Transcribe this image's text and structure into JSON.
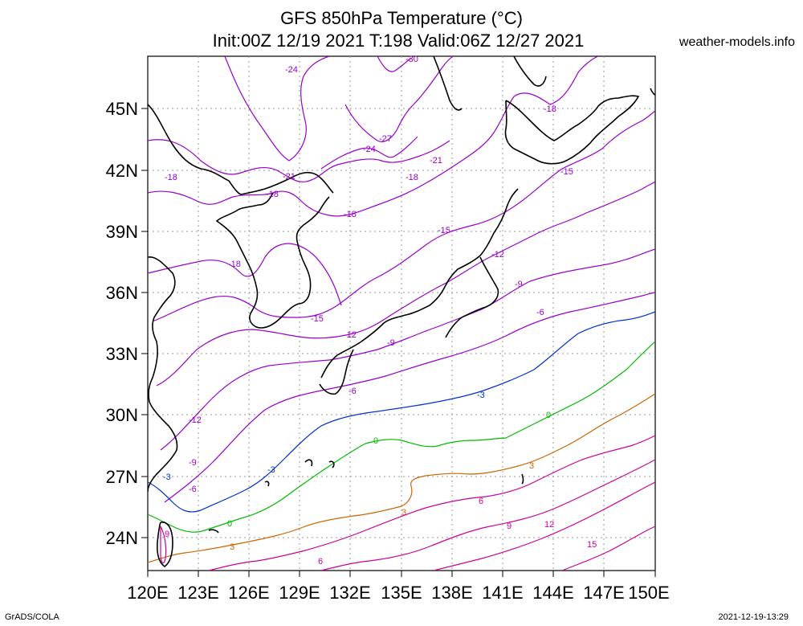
{
  "title_line1": "GFS 850hPa Temperature (°C)",
  "title_line2": "Init:00Z 12/19 2021 T:198 Valid:06Z 12/27 2021",
  "site": "weather-models.info",
  "footer_left": "GrADS/COLA",
  "footer_right": "2021-12-19-13:29",
  "lat_labels": [
    "24N",
    "27N",
    "30N",
    "33N",
    "36N",
    "39N",
    "42N",
    "45N"
  ],
  "lon_labels": [
    "120E",
    "123E",
    "126E",
    "129E",
    "132E",
    "135E",
    "138E",
    "141E",
    "144E",
    "147E",
    "150E"
  ],
  "colors": {
    "purple": "#9900cc",
    "magenta": "#cc0099",
    "blue": "#0033cc",
    "green": "#00bb00",
    "orange": "#cc6600",
    "coast": "#000000"
  },
  "contours": [
    {
      "value": "-30",
      "color": "purple"
    },
    {
      "value": "-27",
      "color": "purple"
    },
    {
      "value": "-24",
      "color": "purple"
    },
    {
      "value": "-21",
      "color": "purple"
    },
    {
      "value": "-18",
      "color": "purple"
    },
    {
      "value": "-15",
      "color": "purple"
    },
    {
      "value": "-12",
      "color": "purple"
    },
    {
      "value": "-9",
      "color": "purple"
    },
    {
      "value": "-6",
      "color": "purple"
    },
    {
      "value": "-3",
      "color": "blue"
    },
    {
      "value": "0",
      "color": "green"
    },
    {
      "value": "3",
      "color": "orange"
    },
    {
      "value": "6",
      "color": "magenta"
    },
    {
      "value": "9",
      "color": "magenta"
    },
    {
      "value": "12",
      "color": "magenta"
    },
    {
      "value": "15",
      "color": "magenta"
    }
  ]
}
